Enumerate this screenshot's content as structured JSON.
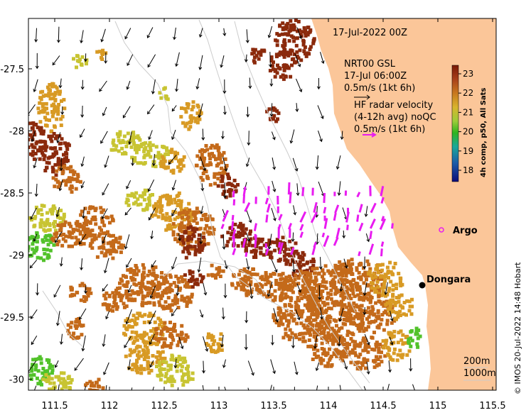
{
  "map": {
    "date_label": "17-Jul-2022 00Z",
    "gsl_title": "NRT00 GSL",
    "gsl_time": "17-Jul 06:00Z",
    "gsl_scale": "0.5m/s (1kt 6h)",
    "hf_title": "HF radar velocity",
    "hf_avg": "(4-12h avg) noQC",
    "hf_scale": "0.5m/s (1kt 6h)",
    "colorbar_label": "4h comp, p50, All Sats",
    "colorbar_ticks": [
      "23",
      "22",
      "21",
      "20",
      "19",
      "18"
    ],
    "colorbar_colors": [
      "#7a1a06",
      "#c0641a",
      "#d2a02a",
      "#a6c83c",
      "#35b81c",
      "#1ca99c",
      "#1c5ca8",
      "#0c0c78"
    ],
    "places": [
      {
        "name": "Argo",
        "kind": "float",
        "lon": 114.9,
        "lat": -28.8
      },
      {
        "name": "Dongara",
        "kind": "town",
        "lon": 114.93,
        "lat": -29.26
      }
    ],
    "isobaths": [
      "200m",
      "1000m"
    ],
    "x_ticks": [
      "111.5",
      "112",
      "112.5",
      "113",
      "113.5",
      "114",
      "114.5",
      "115",
      "115.5"
    ],
    "y_ticks": [
      "-27.5",
      "-28",
      "-28.5",
      "-29",
      "-29.5",
      "-30"
    ],
    "credit": "© IMOS 20-Jul-2022 14:48 Hobart",
    "colors": {
      "land": "#fbc699",
      "sst_dark": "#8b2a0c",
      "sst_mid": "#c46a1a",
      "sst_warm": "#d89a24",
      "sst_yellow": "#c8c432",
      "sst_green": "#52c22a",
      "hf_arrow": "#e81cf0"
    }
  }
}
